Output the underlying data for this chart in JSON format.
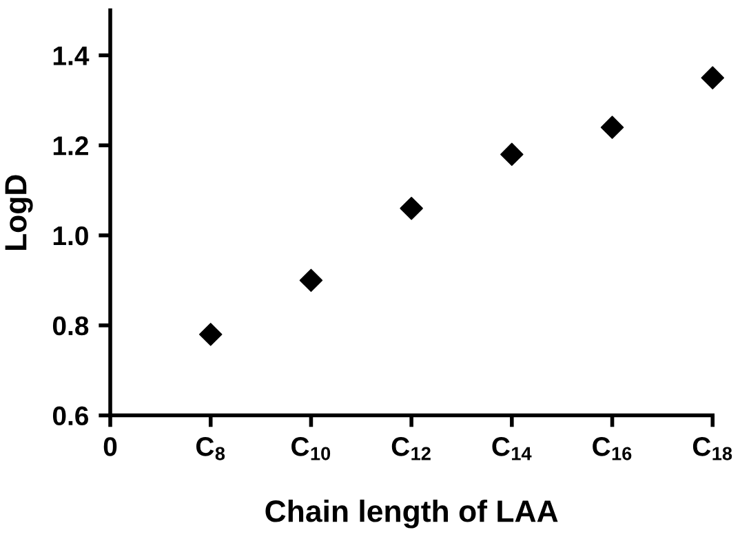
{
  "chart_data": {
    "type": "scatter",
    "xlabel": "Chain length of LAA",
    "ylabel": "LogD",
    "categories": [
      "0",
      "C$_{8}$",
      "C$_{10}$",
      "C$_{12}$",
      "C$_{14}$",
      "C$_{16}$",
      "C$_{18}$"
    ],
    "values": [
      null,
      0.78,
      0.9,
      1.06,
      1.18,
      1.24,
      1.35
    ],
    "color": "#000000",
    "marker": "diamond",
    "ylim": [
      0.6,
      1.5
    ],
    "yticks": [
      0.6,
      0.8,
      {
        "value": 1.0,
        "label": "1.0"
      },
      1.2,
      1.4
    ],
    "grid": false,
    "legend": false
  }
}
